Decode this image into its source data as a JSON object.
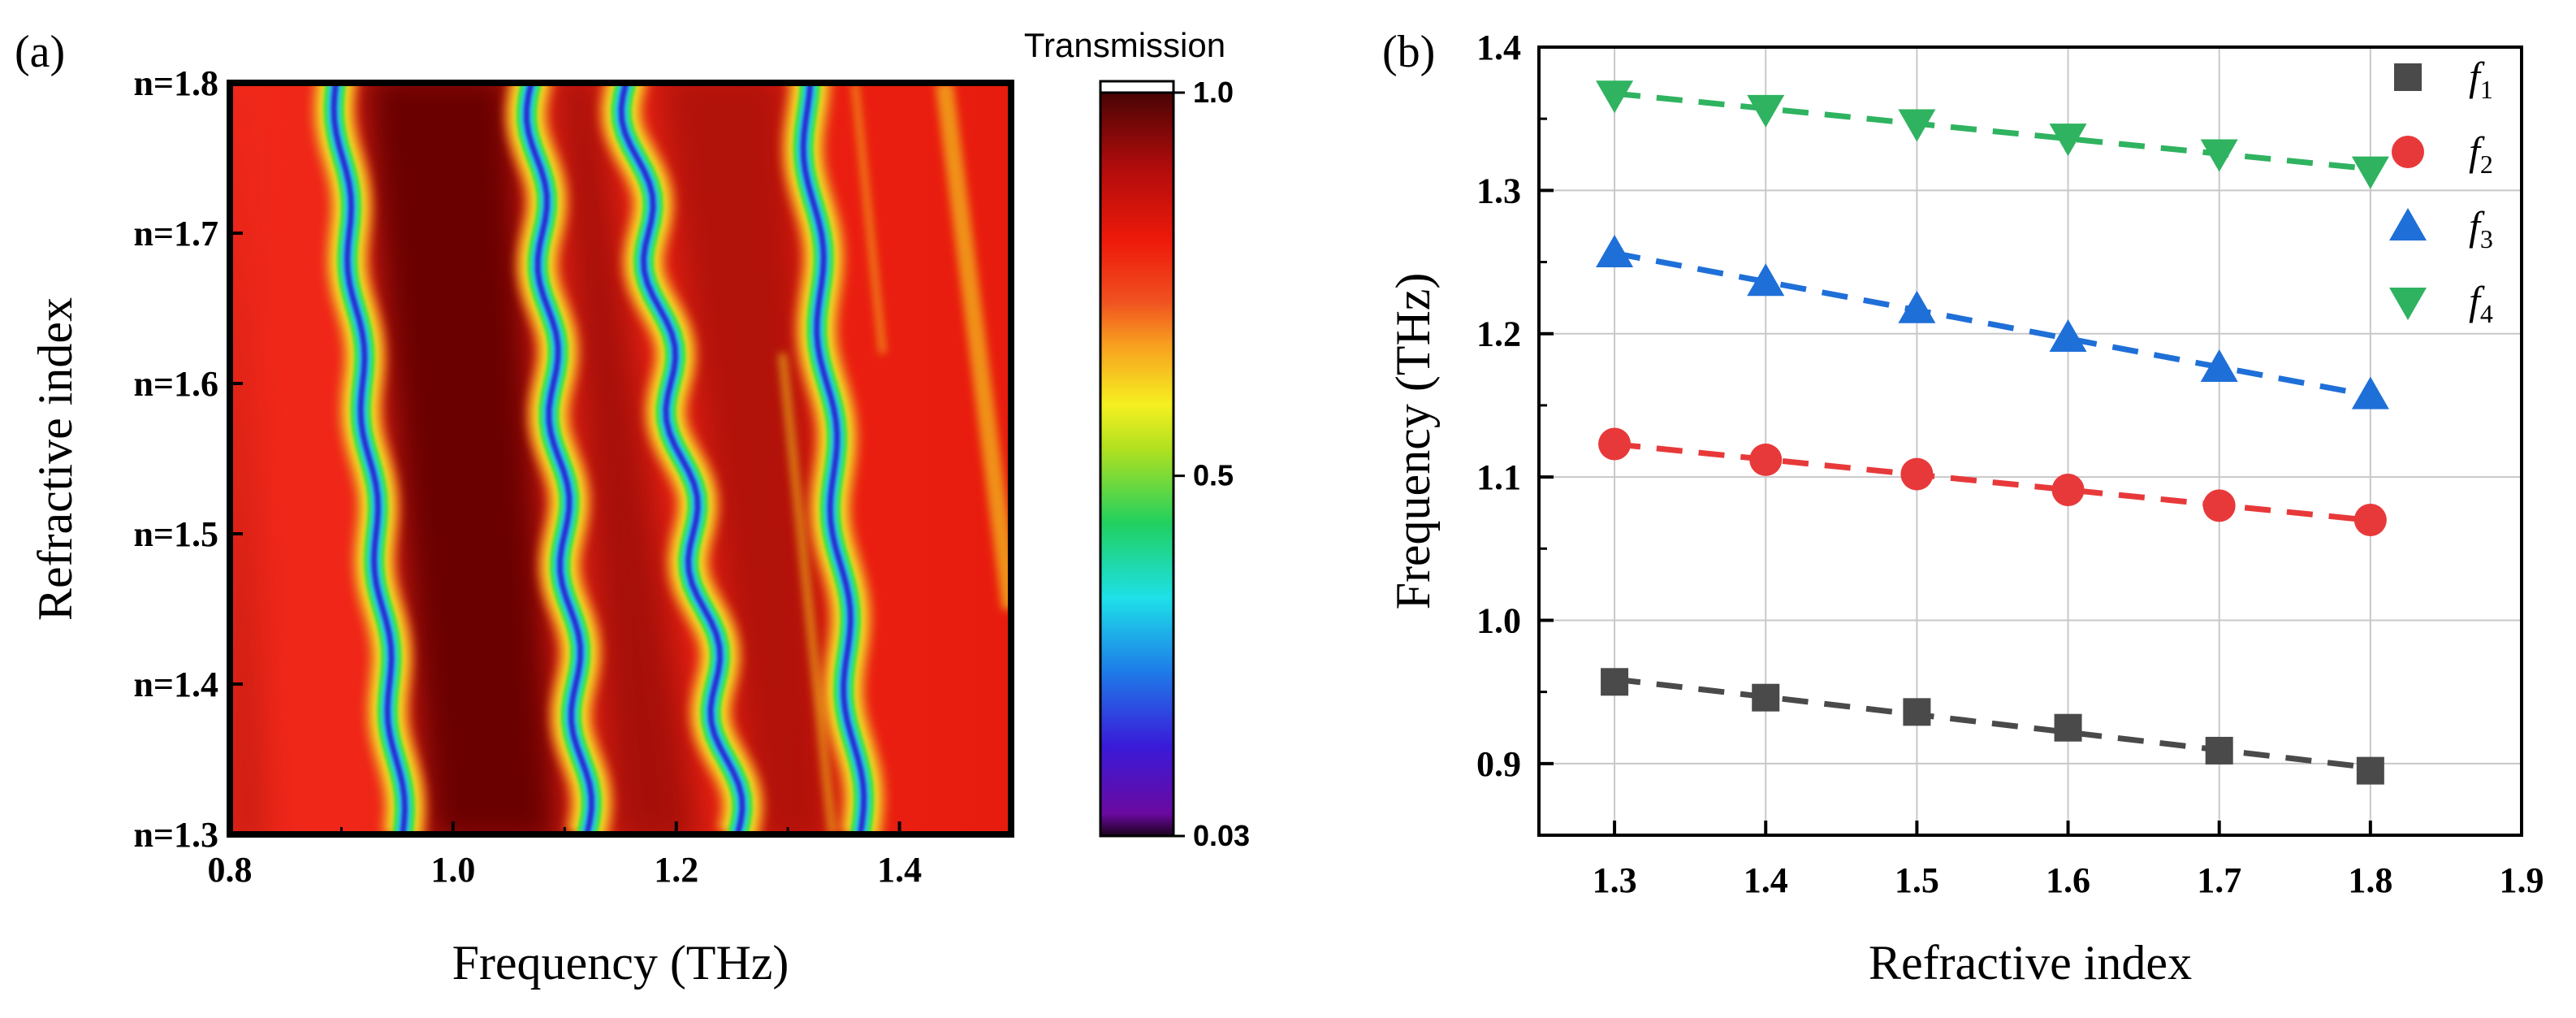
{
  "chart_data": [
    {
      "panel_label": "(a)",
      "type": "heatmap",
      "xlabel": "Frequency (THz)",
      "ylabel": "Refractive index",
      "xlim": [
        0.8,
        1.5
      ],
      "ylim": [
        1.3,
        1.8
      ],
      "xticks": [
        "0.8",
        "1.0",
        "1.2",
        "1.4"
      ],
      "yticks": [
        "n=1.3",
        "n=1.4",
        "n=1.5",
        "n=1.6",
        "n=1.7",
        "n=1.8"
      ],
      "colorbar": {
        "title": "Transmission",
        "ticks": [
          "1.0",
          "0.5",
          "0.03"
        ],
        "range": [
          0.03,
          1.0
        ]
      },
      "bands": [
        {
          "name": "f1",
          "freq_at_n1.3": 0.955,
          "freq_at_n1.8": 0.895
        },
        {
          "name": "f2",
          "freq_at_n1.3": 1.12,
          "freq_at_n1.8": 1.07
        },
        {
          "name": "f3",
          "freq_at_n1.3": 1.255,
          "freq_at_n1.8": 1.155
        },
        {
          "name": "f4",
          "freq_at_n1.3": 1.365,
          "freq_at_n1.8": 1.315
        }
      ],
      "colors": {
        "background": "#ee1a0a",
        "dark_band": "#6b0606",
        "dip": "#2a10c8"
      }
    },
    {
      "panel_label": "(b)",
      "type": "scatter",
      "xlabel": "Refractive index",
      "ylabel": "Frequency (THz)",
      "xlim": [
        1.25,
        1.9
      ],
      "ylim": [
        0.85,
        1.4
      ],
      "xticks": [
        "1.3",
        "1.4",
        "1.5",
        "1.6",
        "1.7",
        "1.8",
        "1.9"
      ],
      "yticks": [
        "0.9",
        "1.0",
        "1.1",
        "1.2",
        "1.3",
        "1.4"
      ],
      "grid": true,
      "legend": "top-right",
      "x": [
        1.3,
        1.4,
        1.5,
        1.6,
        1.7,
        1.8
      ],
      "series": [
        {
          "name": "f",
          "sub": "1",
          "marker": "square",
          "color": "#4a4a4a",
          "values": [
            0.957,
            0.946,
            0.936,
            0.925,
            0.909,
            0.895
          ]
        },
        {
          "name": "f",
          "sub": "2",
          "marker": "circle",
          "color": "#e8393a",
          "values": [
            1.123,
            1.112,
            1.102,
            1.091,
            1.08,
            1.07
          ]
        },
        {
          "name": "f",
          "sub": "3",
          "marker": "triangle-up",
          "color": "#1f6fd8",
          "values": [
            1.256,
            1.236,
            1.217,
            1.197,
            1.176,
            1.157
          ]
        },
        {
          "name": "f",
          "sub": "4",
          "marker": "triangle-down",
          "color": "#2fb360",
          "values": [
            1.367,
            1.357,
            1.347,
            1.337,
            1.326,
            1.314
          ]
        }
      ]
    }
  ]
}
